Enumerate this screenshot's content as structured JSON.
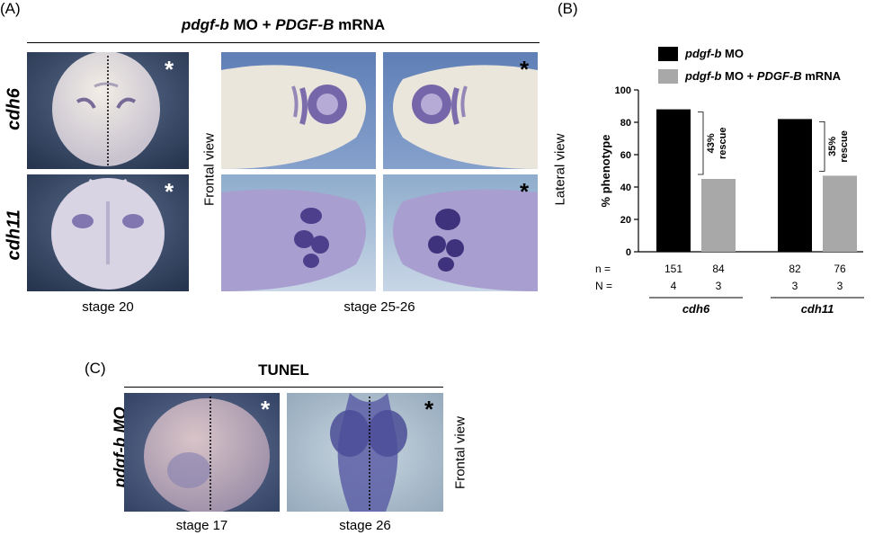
{
  "panel_a": {
    "label": "(A)",
    "title_parts": [
      "pdgf-b",
      " MO + ",
      "PDGF-B",
      " mRNA"
    ],
    "rows": [
      "cdh6",
      "cdh11"
    ],
    "side_left": "Frontal view",
    "side_right": "Lateral view",
    "caption_left": "stage 20",
    "caption_right": "stage 25-26",
    "star": "*"
  },
  "panel_b": {
    "label": "(B)",
    "legend": [
      {
        "parts": [
          "pdgf-b",
          " MO"
        ],
        "color": "#000000"
      },
      {
        "parts": [
          "pdgf-b",
          " MO + ",
          "PDGF-B",
          " mRNA"
        ],
        "color": "#a8a8a8"
      }
    ],
    "n_label": "n =",
    "N_label": "N ="
  },
  "panel_c": {
    "label": "(C)",
    "title": "TUNEL",
    "row": "pdgf-b MO",
    "side": "Frontal view",
    "captions": [
      "stage 17",
      "stage 26"
    ],
    "star": "*"
  },
  "chart_data": {
    "type": "bar",
    "ylabel": "% phenotype",
    "ylim": [
      0,
      100
    ],
    "yticks": [
      0,
      20,
      40,
      60,
      80,
      100
    ],
    "groups": [
      {
        "name": "cdh6",
        "values": [
          88,
          45
        ],
        "n": [
          "151",
          "84"
        ],
        "N": [
          "4",
          "3"
        ],
        "rescue": "43%\nrescue"
      },
      {
        "name": "cdh11",
        "values": [
          82,
          47
        ],
        "n": [
          "82",
          "76"
        ],
        "N": [
          "3",
          "3"
        ],
        "rescue": "35%\nrescue"
      }
    ],
    "series": [
      {
        "name": "pdgf-b MO",
        "color": "#000000"
      },
      {
        "name": "pdgf-b MO + PDGF-B mRNA",
        "color": "#a8a8a8"
      }
    ],
    "legend_position": "top-left"
  }
}
